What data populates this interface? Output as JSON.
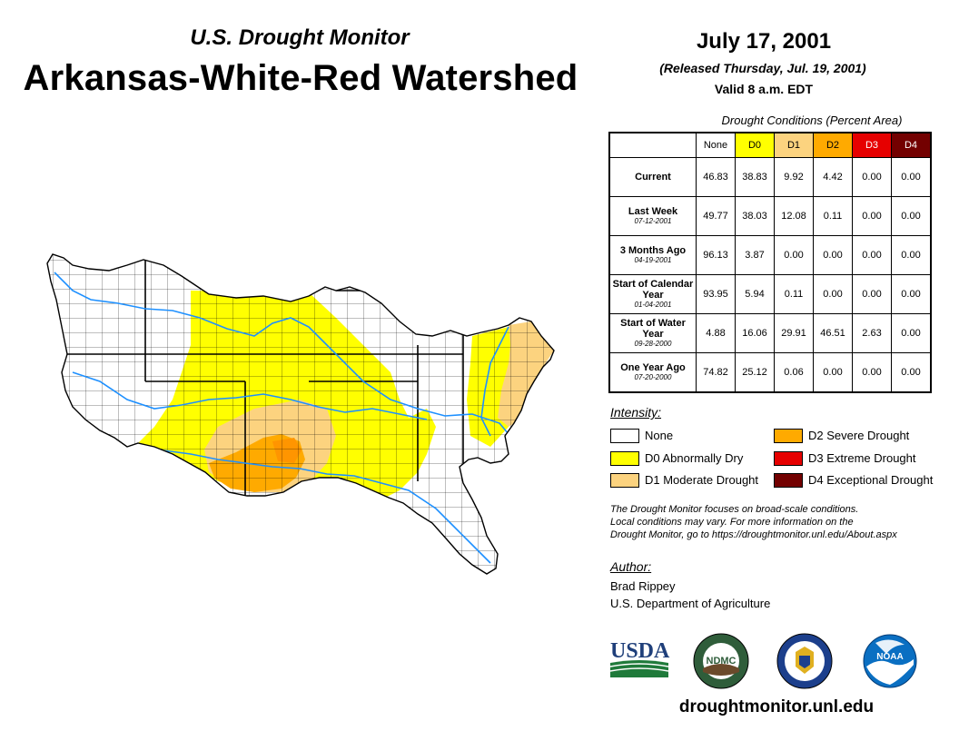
{
  "header": {
    "subtitle": "U.S. Drought Monitor",
    "title": "Arkansas-White-Red Watershed",
    "date": "July 17, 2001",
    "released": "(Released Thursday, Jul. 19, 2001)",
    "valid": "Valid 8 a.m. EDT"
  },
  "table": {
    "caption": "Drought Conditions (Percent Area)",
    "columns": [
      "None",
      "D0",
      "D1",
      "D2",
      "D3",
      "D4"
    ],
    "rows": [
      {
        "label": "Current",
        "date": "",
        "values": [
          "46.83",
          "38.83",
          "9.92",
          "4.42",
          "0.00",
          "0.00"
        ]
      },
      {
        "label": "Last Week",
        "date": "07-12-2001",
        "values": [
          "49.77",
          "38.03",
          "12.08",
          "0.11",
          "0.00",
          "0.00"
        ]
      },
      {
        "label": "3 Months Ago",
        "date": "04-19-2001",
        "values": [
          "96.13",
          "3.87",
          "0.00",
          "0.00",
          "0.00",
          "0.00"
        ]
      },
      {
        "label": "Start of Calendar Year",
        "date": "01-04-2001",
        "values": [
          "93.95",
          "5.94",
          "0.11",
          "0.00",
          "0.00",
          "0.00"
        ]
      },
      {
        "label": "Start of Water Year",
        "date": "09-28-2000",
        "values": [
          "4.88",
          "16.06",
          "29.91",
          "46.51",
          "2.63",
          "0.00"
        ]
      },
      {
        "label": "One Year Ago",
        "date": "07-20-2000",
        "values": [
          "74.82",
          "25.12",
          "0.06",
          "0.00",
          "0.00",
          "0.00"
        ]
      }
    ]
  },
  "legend": {
    "heading": "Intensity:",
    "items": [
      {
        "label": "None",
        "color": "#ffffff"
      },
      {
        "label": "D0 Abnormally Dry",
        "color": "#ffff00"
      },
      {
        "label": "D1 Moderate Drought",
        "color": "#fcd37f"
      },
      {
        "label": "D2 Severe Drought",
        "color": "#ffaa00"
      },
      {
        "label": "D3 Extreme Drought",
        "color": "#e60000"
      },
      {
        "label": "D4 Exceptional Drought",
        "color": "#730000"
      }
    ]
  },
  "note": {
    "line1": "The Drought Monitor focuses on broad-scale conditions.",
    "line2": "Local conditions may vary. For more information on the",
    "line3": "Drought Monitor, go to https://droughtmonitor.unl.edu/About.aspx"
  },
  "author": {
    "heading": "Author:",
    "name": "Brad Rippey",
    "org": "U.S. Department of Agriculture"
  },
  "logos": {
    "usda": "USDA",
    "ndmc": "NDMC",
    "noaa": "NOAA"
  },
  "website": "droughtmonitor.unl.edu"
}
